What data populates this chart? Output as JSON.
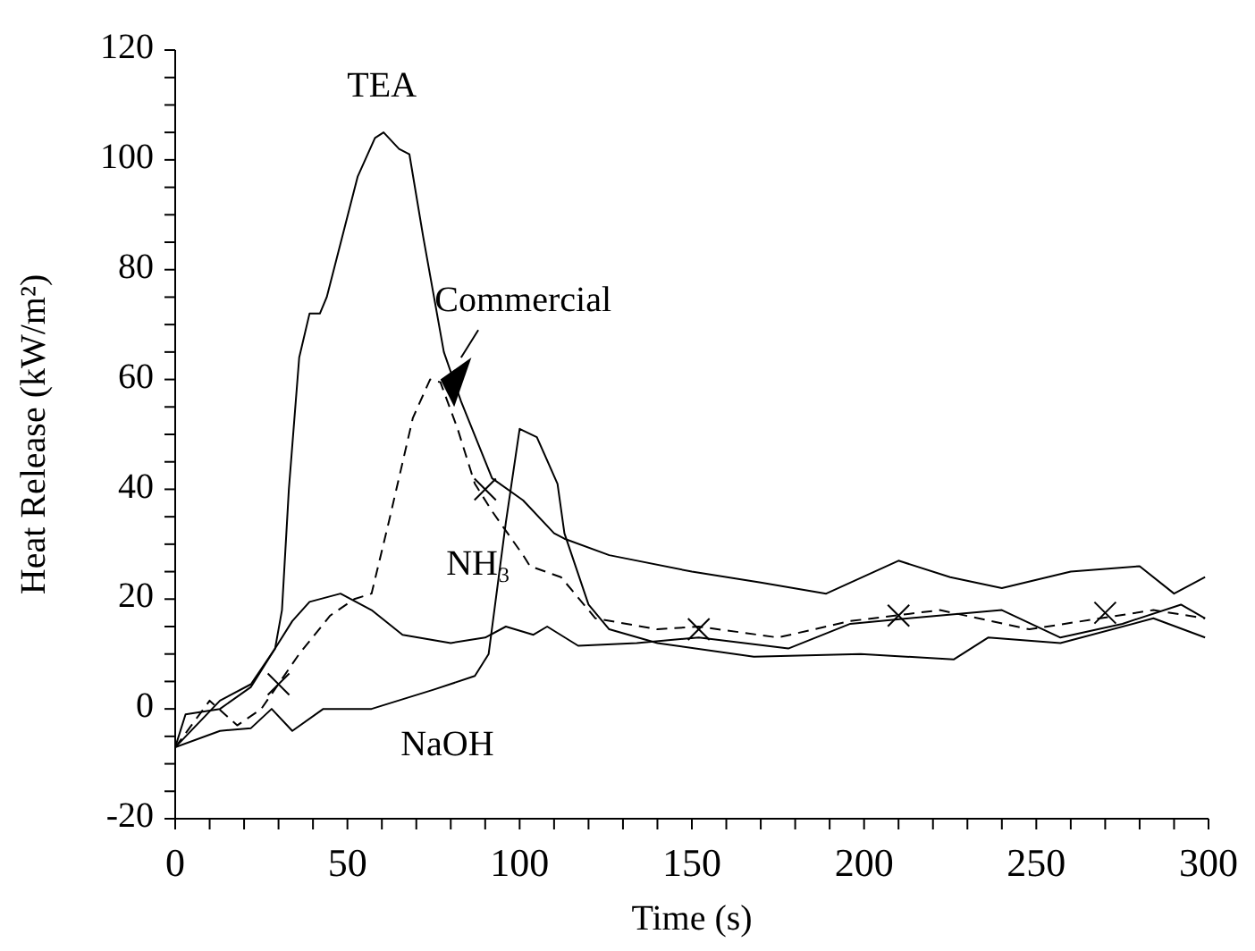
{
  "chart_data": {
    "type": "line",
    "xlabel": "Time (s)",
    "ylabel": "Heat Release (kW/m²)",
    "xlim": [
      0,
      300
    ],
    "ylim": [
      -20,
      120
    ],
    "xticks": [
      0,
      {
        "value": 10,
        "label": null
      },
      {
        "value": 20,
        "label": null
      },
      {
        "value": 30,
        "label": null
      },
      {
        "value": 40,
        "label": null
      },
      50,
      {
        "value": 60,
        "label": null
      },
      {
        "value": 70,
        "label": null
      },
      {
        "value": 80,
        "label": null
      },
      {
        "value": 90,
        "label": null
      },
      100,
      {
        "value": 110,
        "label": null
      },
      {
        "value": 120,
        "label": null
      },
      {
        "value": 130,
        "label": null
      },
      {
        "value": 140,
        "label": null
      },
      150,
      {
        "value": 160,
        "label": null
      },
      {
        "value": 170,
        "label": null
      },
      {
        "value": 180,
        "label": null
      },
      {
        "value": 190,
        "label": null
      },
      200,
      {
        "value": 210,
        "label": null
      },
      {
        "value": 220,
        "label": null
      },
      {
        "value": 230,
        "label": null
      },
      {
        "value": 240,
        "label": null
      },
      250,
      {
        "value": 260,
        "label": null
      },
      {
        "value": 270,
        "label": null
      },
      {
        "value": 280,
        "label": null
      },
      {
        "value": 290,
        "label": null
      },
      300
    ],
    "yticks": [
      -20,
      {
        "value": -15,
        "label": null
      },
      {
        "value": -10,
        "label": null
      },
      {
        "value": -5,
        "label": null
      },
      0,
      {
        "value": 5,
        "label": null
      },
      {
        "value": 10,
        "label": null
      },
      {
        "value": 15,
        "label": null
      },
      20,
      {
        "value": 25,
        "label": null
      },
      {
        "value": 30,
        "label": null
      },
      {
        "value": 35,
        "label": null
      },
      40,
      {
        "value": 45,
        "label": null
      },
      {
        "value": 50,
        "label": null
      },
      {
        "value": 55,
        "label": null
      },
      60,
      {
        "value": 65,
        "label": null
      },
      {
        "value": 70,
        "label": null
      },
      {
        "value": 75,
        "label": null
      },
      80,
      {
        "value": 85,
        "label": null
      },
      {
        "value": 90,
        "label": null
      },
      {
        "value": 95,
        "label": null
      },
      100,
      {
        "value": 105,
        "label": null
      },
      {
        "value": 110,
        "label": null
      },
      {
        "value": 115,
        "label": null
      },
      120
    ],
    "legend": false,
    "series": [
      {
        "color": "#000000",
        "line_style": "solid",
        "marker": "none",
        "x": [
          0,
          3,
          13,
          22,
          29,
          31,
          33,
          36,
          39,
          42,
          44,
          53,
          58,
          60.5,
          65,
          68,
          72,
          78,
          83,
          92,
          101,
          110,
          113,
          126,
          150,
          170,
          189,
          210,
          225,
          240,
          260,
          280,
          290,
          299
        ],
        "values": [
          -7,
          -1,
          0,
          4,
          11,
          18,
          40,
          64,
          72,
          72,
          75,
          97,
          104,
          105,
          102,
          101,
          86,
          65,
          56,
          42,
          38,
          32,
          31,
          28,
          25,
          23,
          21,
          27,
          24,
          22,
          25,
          26,
          21,
          24
        ]
      },
      {
        "color": "#000000",
        "line_style": "solid",
        "marker": "none",
        "x": [
          0,
          13,
          22,
          28,
          34,
          43,
          57,
          75,
          87,
          91,
          96,
          100,
          105,
          111,
          113,
          120,
          126,
          140,
          168,
          199,
          226,
          236,
          257,
          284,
          299
        ],
        "values": [
          -7,
          -4,
          -3.5,
          0,
          -4,
          0,
          0,
          3.5,
          6,
          10,
          34,
          51,
          49.5,
          41,
          32,
          19,
          14.5,
          12,
          9.5,
          10,
          9,
          13,
          12,
          16.5,
          13
        ]
      },
      {
        "color": "#000000",
        "line_style": "solid",
        "marker": "none",
        "x": [
          0,
          13,
          22,
          29,
          34,
          39,
          48,
          57,
          66,
          80,
          90,
          96,
          104,
          108,
          117,
          134,
          152,
          178,
          196,
          213,
          240,
          257,
          275,
          292,
          299
        ],
        "values": [
          -7,
          1.5,
          4.5,
          11,
          16,
          19.5,
          21,
          18,
          13.5,
          12,
          13,
          15,
          13.5,
          15,
          11.5,
          12,
          13,
          11,
          15.5,
          16.5,
          18,
          13,
          15.5,
          19,
          16.5
        ]
      },
      {
        "color": "#000000",
        "line_style": "dashed",
        "marker": "none",
        "x": [
          0,
          10,
          18,
          25,
          36,
          45,
          52,
          57,
          62,
          69,
          74,
          77,
          82,
          87,
          92,
          101,
          103,
          112,
          122,
          140,
          152,
          175,
          196,
          222,
          248,
          284,
          299
        ],
        "values": [
          -7,
          1.5,
          -3,
          0,
          10,
          17,
          20,
          21,
          34,
          53,
          60,
          59.5,
          51,
          41,
          36,
          28,
          26,
          24,
          16.5,
          14.5,
          15,
          13,
          16,
          18,
          14.5,
          18,
          16.5
        ]
      },
      {
        "type": "scatter",
        "color": "#000000",
        "marker": "cross",
        "x": [
          30,
          90,
          152,
          210,
          270
        ],
        "values": [
          4.5,
          40,
          14.5,
          17,
          17.5
        ]
      }
    ],
    "annotations": [
      "TEA",
      "Commercial",
      "NH₃",
      "NaOH"
    ]
  }
}
